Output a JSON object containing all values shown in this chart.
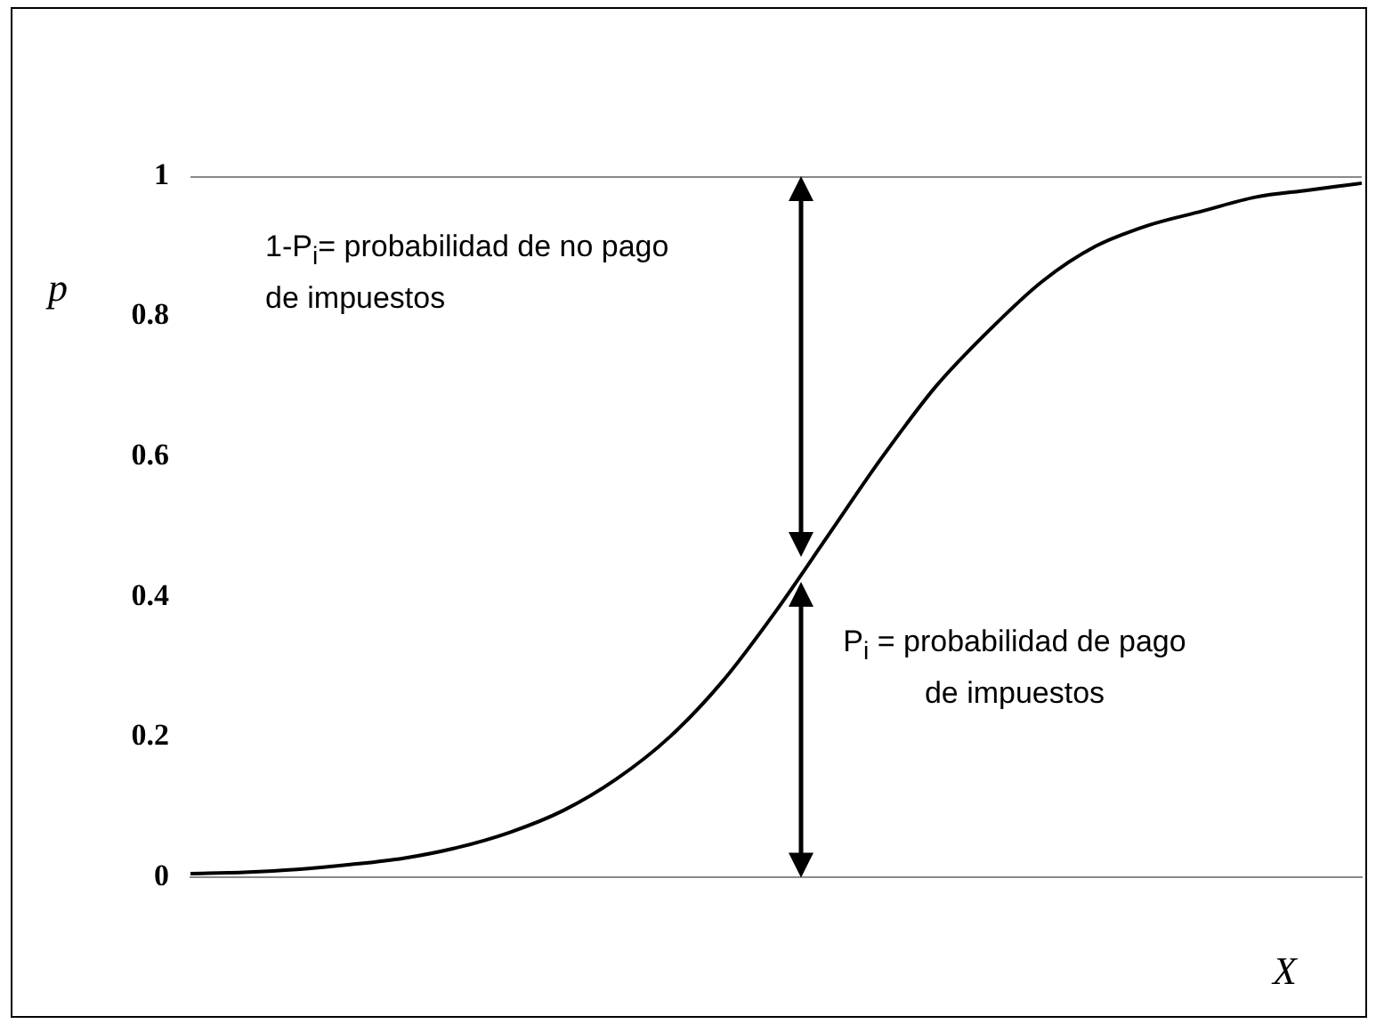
{
  "chart_data": {
    "type": "line",
    "categories": [
      null,
      null,
      null,
      null,
      null,
      null,
      null,
      null,
      null,
      null,
      null,
      null,
      null,
      null,
      null,
      null,
      null,
      null,
      null,
      null,
      null,
      null,
      null
    ],
    "values": [
      0.005,
      0.007,
      0.011,
      0.018,
      0.027,
      0.042,
      0.064,
      0.095,
      0.14,
      0.2,
      0.28,
      0.38,
      0.49,
      0.6,
      0.7,
      0.78,
      0.85,
      0.9,
      0.93,
      0.95,
      0.97,
      0.98,
      0.99
    ],
    "color": "#000000",
    "ylabel": "p",
    "xlabel": "X",
    "ylim": [
      0,
      1
    ],
    "yticks": [
      0,
      0.2,
      0.4,
      0.6,
      0.8,
      1
    ],
    "tick_labels": "y",
    "grid": false,
    "legend": false,
    "marker": "none",
    "line_style": "solid",
    "annotations": [
      "1-P$_{i}$= probabilidad de no pago de impuestos",
      "P$_{i}$ = probabilidad de pago de impuestos"
    ]
  }
}
